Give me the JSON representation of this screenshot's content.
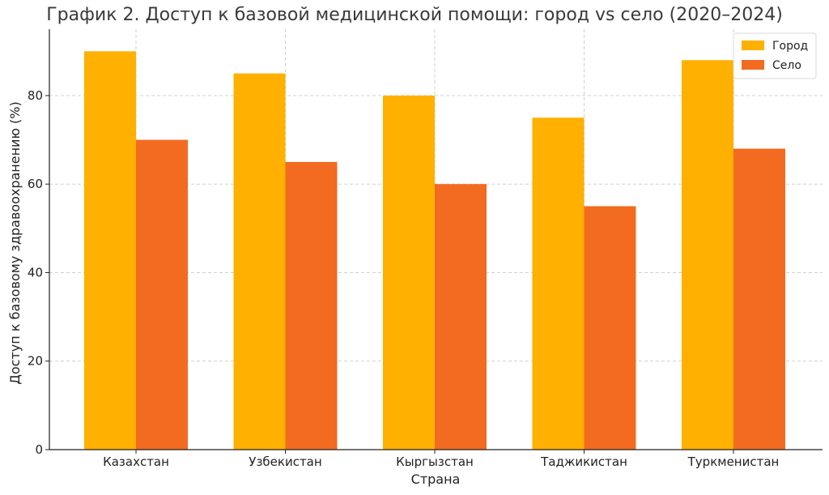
{
  "chart_data": {
    "type": "bar",
    "title": "График 2. Доступ к базовой медицинской помощи: город vs село (2020–2024)",
    "xlabel": "Страна",
    "ylabel": "Доступ к базовому здравоохранению (%)",
    "categories": [
      "Казахстан",
      "Узбекистан",
      "Кыргызстан",
      "Таджикистан",
      "Туркменистан"
    ],
    "series": [
      {
        "name": "Город",
        "color": "#FFB000",
        "values": [
          90,
          85,
          80,
          75,
          88
        ]
      },
      {
        "name": "Село",
        "color": "#F26B21",
        "values": [
          70,
          65,
          60,
          55,
          68
        ]
      }
    ],
    "ylim": [
      0,
      95
    ],
    "yticks": [
      0,
      20,
      40,
      60,
      80
    ],
    "grid": true,
    "legend_position": "top-right"
  }
}
